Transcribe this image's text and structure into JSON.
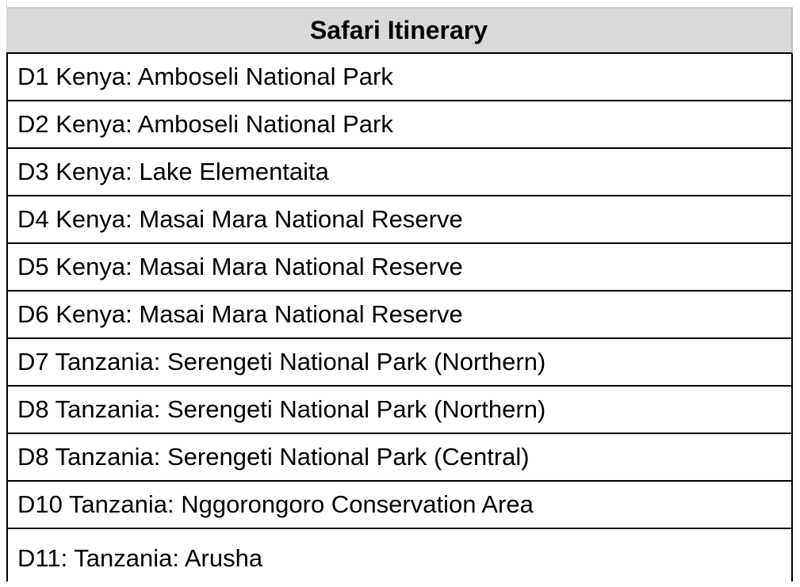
{
  "table": {
    "header": "Safari Itinerary",
    "rows": [
      "D1 Kenya: Amboseli National Park",
      "D2 Kenya: Amboseli National Park",
      "D3 Kenya: Lake Elementaita",
      "D4 Kenya: Masai Mara National Reserve",
      "D5 Kenya: Masai Mara National Reserve",
      "D6 Kenya: Masai Mara National Reserve",
      "D7 Tanzania: Serengeti National Park (Northern)",
      "D8 Tanzania: Serengeti National Park (Northern)",
      "D8 Tanzania: Serengeti National Park (Central)",
      "D10 Tanzania: Nggorongoro Conservation Area",
      "D11: Tanzania: Arusha"
    ]
  }
}
